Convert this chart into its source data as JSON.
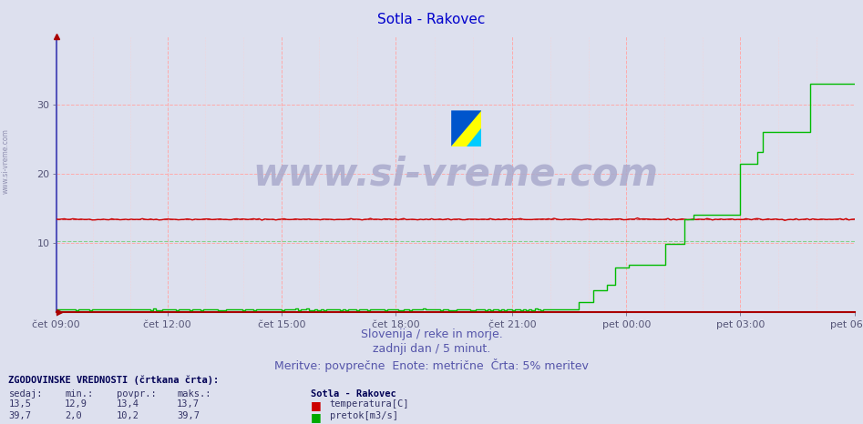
{
  "title": "Sotla - Rakovec",
  "title_color": "#0000cc",
  "title_fontsize": 11,
  "bg_color": "#dde0ee",
  "plot_bg_color": "#dde0ee",
  "grid_color_major": "#ffaaaa",
  "grid_color_minor": "#ffcccc",
  "x_labels": [
    "čet 09:00",
    "čet 12:00",
    "čet 15:00",
    "čet 18:00",
    "čet 21:00",
    "pet 00:00",
    "pet 03:00",
    "pet 06:00"
  ],
  "x_ticks_norm": [
    0.0,
    0.142857,
    0.285714,
    0.428571,
    0.571429,
    0.714286,
    0.857143,
    1.0
  ],
  "ylim": [
    0,
    40
  ],
  "yticks": [
    10,
    20,
    30
  ],
  "tick_color": "#555577",
  "tick_fontsize": 8,
  "subtitle1": "Slovenija / reke in morje.",
  "subtitle2": "zadnji dan / 5 minut.",
  "subtitle3": "Meritve: povprečne  Enote: metrične  Črta: 5% meritev",
  "subtitle_color": "#5555aa",
  "subtitle_fontsize": 9,
  "watermark": "www.si-vreme.com",
  "watermark_color": "#aaaacc",
  "watermark_fontsize": 30,
  "watermark_alpha": 0.85,
  "legend_title": "Sotla - Rakovec",
  "legend_items": [
    "temperatura[C]",
    "pretok[m3/s]"
  ],
  "legend_colors": [
    "#cc0000",
    "#00aa00"
  ],
  "table_header": [
    "sedaj:",
    "min.:",
    "povpr.:",
    "maks.:"
  ],
  "table_rows": [
    [
      "13,5",
      "12,9",
      "13,4",
      "13,7"
    ],
    [
      "39,7",
      "2,0",
      "10,2",
      "39,7"
    ]
  ],
  "table_row_colors": [
    "#cc0000",
    "#00aa00"
  ],
  "table_label": "ZGODOVINSKE VREDNOSTI (črtkana črta):",
  "temp_avg": 13.4,
  "flow_avg": 10.2,
  "flow_max": 39.7,
  "n_points": 288,
  "temp_color": "#cc0000",
  "flow_color": "#00bb00",
  "left_axis_color": "#5555bb",
  "bottom_axis_color": "#aa0000",
  "arrow_color": "#aa0000"
}
